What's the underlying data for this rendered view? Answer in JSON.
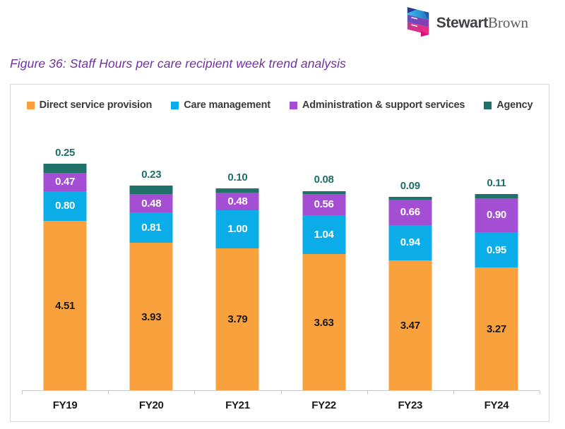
{
  "logo": {
    "text_primary": "Stewart",
    "text_secondary": "Brown"
  },
  "figure_title": "Figure 36: Staff Hours per care recipient week trend analysis",
  "chart_data": {
    "type": "bar",
    "stacked": true,
    "title": "Figure 36: Staff Hours per care recipient week trend analysis",
    "categories": [
      "FY19",
      "FY20",
      "FY21",
      "FY22",
      "FY23",
      "FY24"
    ],
    "series": [
      {
        "name": "Direct service provision",
        "color": "#F9A13C",
        "label_color": "#1A1A1A",
        "label_position": "inside",
        "values": [
          4.51,
          3.93,
          3.79,
          3.63,
          3.47,
          3.27
        ]
      },
      {
        "name": "Care management",
        "color": "#0BADE9",
        "label_color": "#FFFFFF",
        "label_position": "inside",
        "values": [
          0.8,
          0.81,
          1.0,
          1.04,
          0.94,
          0.95
        ]
      },
      {
        "name": "Administration & support services",
        "color": "#A44FD3",
        "label_color": "#FFFFFF",
        "label_position": "inside",
        "values": [
          0.47,
          0.48,
          0.48,
          0.56,
          0.66,
          0.9
        ]
      },
      {
        "name": "Agency",
        "color": "#20716A",
        "label_color": "#1F6E68",
        "label_position": "above",
        "values": [
          0.25,
          0.23,
          0.1,
          0.08,
          0.09,
          0.11
        ]
      }
    ],
    "value_label_format": "0.00",
    "xlabel": "",
    "ylabel": "",
    "ylim": [
      0,
      6.5
    ],
    "grid": false,
    "legend_position": "top",
    "y_axis_visible": false
  }
}
